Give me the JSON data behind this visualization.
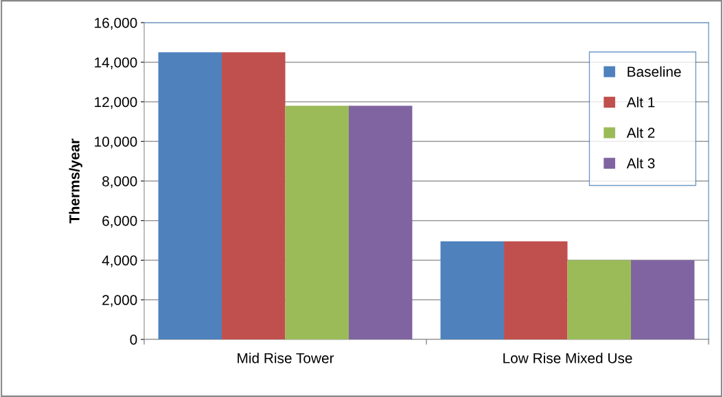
{
  "chart_data": {
    "type": "bar",
    "ylabel": "Therms/year",
    "categories": [
      "Mid Rise Tower",
      "Low Rise Mixed Use"
    ],
    "series": [
      {
        "name": "Baseline",
        "color": "#4f81bd",
        "values": [
          14500,
          4950
        ]
      },
      {
        "name": "Alt 1",
        "color": "#c0504d",
        "values": [
          14500,
          4950
        ]
      },
      {
        "name": "Alt 2",
        "color": "#9bbb59",
        "values": [
          11800,
          4000
        ]
      },
      {
        "name": "Alt 3",
        "color": "#8064a2",
        "values": [
          11800,
          4000
        ]
      }
    ],
    "ylim": [
      0,
      16000
    ],
    "yticks": [
      {
        "value": 0,
        "label": "0"
      },
      {
        "value": 2000,
        "label": "2,000"
      },
      {
        "value": 4000,
        "label": "4,000"
      },
      {
        "value": 6000,
        "label": "6,000"
      },
      {
        "value": 8000,
        "label": "8,000"
      },
      {
        "value": 10000,
        "label": "10,000"
      },
      {
        "value": 12000,
        "label": "12,000"
      },
      {
        "value": 14000,
        "label": "14,000"
      },
      {
        "value": 16000,
        "label": "16,000"
      }
    ],
    "grid": "y",
    "legend": "top right"
  }
}
